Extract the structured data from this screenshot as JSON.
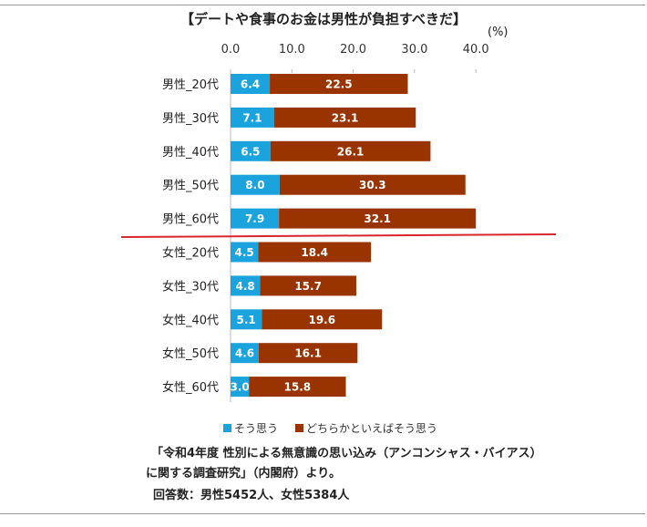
{
  "chart_data": {
    "type": "bar",
    "orientation": "horizontal",
    "stacked": true,
    "title": "【デートや食事のお金は男性が負担すべきだ】",
    "unit": "(%)",
    "xlim": [
      0,
      40
    ],
    "xticks": [
      "0.0",
      "10.0",
      "20.0",
      "30.0",
      "40.0"
    ],
    "categories": [
      "男性_20代",
      "男性_30代",
      "男性_40代",
      "男性_50代",
      "男性_60代",
      "女性_20代",
      "女性_30代",
      "女性_40代",
      "女性_50代",
      "女性_60代"
    ],
    "series": [
      {
        "name": "そう思う",
        "color": "#1aa3dd",
        "values": [
          6.4,
          7.1,
          6.5,
          8.0,
          7.9,
          4.5,
          4.8,
          5.1,
          4.6,
          3.0
        ]
      },
      {
        "name": "どちらかといえばそう思う",
        "color": "#993300",
        "values": [
          22.5,
          23.1,
          26.1,
          30.3,
          32.1,
          18.4,
          15.7,
          19.6,
          16.1,
          15.8
        ]
      }
    ],
    "divider_color": "#d9262e",
    "legend": "bottom"
  },
  "notes": {
    "source_line1": "「令和4年度 性別による無意識の思い込み（アンコンシャス・バイアス）",
    "source_line2": "に関する調査研究」（内閣府）より。",
    "respondents": "回答数：男性5452人、女性5384人"
  }
}
